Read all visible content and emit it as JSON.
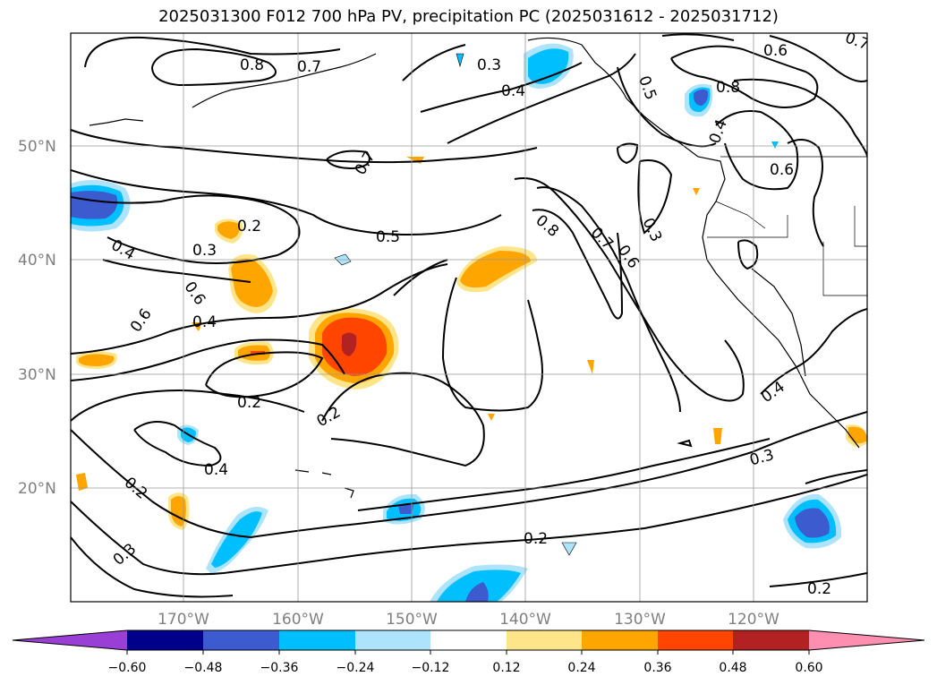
{
  "title": "2025031300 F012 700 hPa PV, precipitation PC (2025031612 - 2025031712)",
  "lat_labels": [
    "50°N",
    "40°N",
    "30°N",
    "20°N"
  ],
  "lon_labels": [
    "170°W",
    "160°W",
    "150°W",
    "140°W",
    "130°W",
    "120°W"
  ],
  "colorbar": {
    "ticks": [
      "−0.60",
      "−0.48",
      "−0.36",
      "−0.24",
      "−0.12",
      "0.12",
      "0.24",
      "0.36",
      "0.48",
      "0.60"
    ],
    "colors": [
      "#9a3fd6",
      "#00008b",
      "#3b5bcf",
      "#00bfff",
      "#ade4fb",
      "#ffffff",
      "#ffe58a",
      "#ffa500",
      "#ff4500",
      "#b22222",
      "#ff8fb1"
    ]
  },
  "contour_labels": [
    "0.8",
    "0.7",
    "0.3",
    "0.4",
    "0.5",
    "0.6",
    "0.7",
    "0.8",
    "0.6",
    "0.7",
    "0.2",
    "0.3",
    "0.4",
    "0.5",
    "0.8",
    "0.7",
    "0.6",
    "0.3",
    "0.4",
    "0.6",
    "0.4",
    "0.6",
    "0.2",
    "0.2",
    "0.4",
    "0.2",
    "0.3",
    "0.2",
    "0.3",
    "0.2"
  ]
}
